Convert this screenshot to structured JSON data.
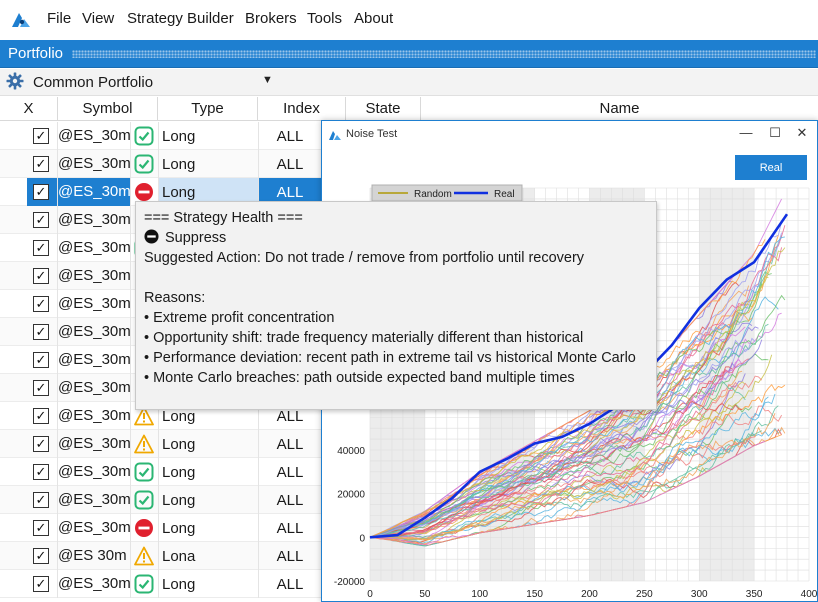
{
  "menu": {
    "items": [
      "File",
      "View",
      "Strategy Builder",
      "Brokers",
      "Tools",
      "About"
    ]
  },
  "portfolio": {
    "title": "Portfolio",
    "selected": "Common Portfolio"
  },
  "columns": {
    "x": "X",
    "symbol": "Symbol",
    "type": "Type",
    "index": "Index",
    "state": "State",
    "name": "Name"
  },
  "rows": [
    {
      "checked": true,
      "symbol": "@ES_30m",
      "status": "ok",
      "type": "Long",
      "index": "ALL"
    },
    {
      "checked": true,
      "symbol": "@ES_30m",
      "status": "ok",
      "type": "Long",
      "index": "ALL"
    },
    {
      "checked": true,
      "symbol": "@ES_30m",
      "status": "stop",
      "type": "Long",
      "index": "ALL",
      "selected": true
    },
    {
      "checked": true,
      "symbol": "@ES_30m",
      "status": "",
      "type": "",
      "index": ""
    },
    {
      "checked": true,
      "symbol": "@ES_30m",
      "status": "ok",
      "type": "",
      "index": ""
    },
    {
      "checked": true,
      "symbol": "@ES_30m",
      "status": "",
      "type": "",
      "index": ""
    },
    {
      "checked": true,
      "symbol": "@ES_30m",
      "status": "",
      "type": "",
      "index": ""
    },
    {
      "checked": true,
      "symbol": "@ES_30m",
      "status": "",
      "type": "",
      "index": ""
    },
    {
      "checked": true,
      "symbol": "@ES_30m",
      "status": "",
      "type": "",
      "index": ""
    },
    {
      "checked": true,
      "symbol": "@ES_30m",
      "status": "",
      "type": "",
      "index": ""
    },
    {
      "checked": true,
      "symbol": "@ES_30m",
      "status": "warn",
      "type": "Long",
      "index": "ALL"
    },
    {
      "checked": true,
      "symbol": "@ES_30m",
      "status": "warn",
      "type": "Long",
      "index": "ALL"
    },
    {
      "checked": true,
      "symbol": "@ES_30m",
      "status": "ok",
      "type": "Long",
      "index": "ALL"
    },
    {
      "checked": true,
      "symbol": "@ES_30m",
      "status": "ok",
      "type": "Long",
      "index": "ALL"
    },
    {
      "checked": true,
      "symbol": "@ES_30m",
      "status": "stop",
      "type": "Long",
      "index": "ALL"
    },
    {
      "checked": true,
      "symbol": "@ES 30m",
      "status": "warn",
      "type": "Lona",
      "index": "ALL"
    },
    {
      "checked": true,
      "symbol": "@ES_30m",
      "status": "ok",
      "type": "Long",
      "index": "ALL"
    }
  ],
  "status_colors": {
    "ok": "#2bb673",
    "warn": "#f0a800",
    "stop": "#e0202e"
  },
  "tooltip": {
    "header": "=== Strategy Health ===",
    "status": "Suppress",
    "action": "Suggested Action: Do not trade / remove from portfolio until recovery",
    "reasons_title": "Reasons:",
    "reasons": [
      "• Extreme profit concentration",
      "• Opportunity shift: trade frequency materially different than historical",
      "• Performance deviation: recent path in extreme tail vs historical Monte Carlo",
      "• Monte Carlo breaches: path outside expected band multiple times"
    ]
  },
  "noise_window": {
    "title": "Noise Test",
    "real_button": "Real",
    "controls": {
      "minimize": "—",
      "maximize": "☐",
      "close": "✕"
    }
  },
  "chart_data": {
    "type": "line",
    "legend": [
      "Random",
      "Real"
    ],
    "legend_colors": {
      "Random": "#b8a83a",
      "Real": "#1030e0"
    },
    "xlim": [
      0,
      400
    ],
    "ylim": [
      -20000,
      160000
    ],
    "x_ticks": [
      0,
      50,
      100,
      150,
      200,
      250,
      300,
      350,
      400
    ],
    "y_ticks": [
      -20000,
      0,
      20000,
      40000
    ],
    "series": [
      {
        "name": "Real",
        "x": [
          0,
          25,
          50,
          75,
          100,
          125,
          150,
          175,
          200,
          225,
          250,
          275,
          300,
          325,
          350,
          380
        ],
        "values": [
          0,
          1000,
          9000,
          18000,
          30000,
          36000,
          43000,
          46000,
          52000,
          60000,
          75000,
          88000,
          105000,
          118000,
          126000,
          148000
        ]
      }
    ],
    "random_band": {
      "x": [
        0,
        50,
        100,
        150,
        200,
        250,
        300,
        350,
        380
      ],
      "low": [
        0,
        -4000,
        2000,
        6000,
        10000,
        16000,
        28000,
        42000,
        48000
      ],
      "high": [
        0,
        12000,
        30000,
        44000,
        58000,
        74000,
        102000,
        130000,
        160000
      ]
    }
  }
}
